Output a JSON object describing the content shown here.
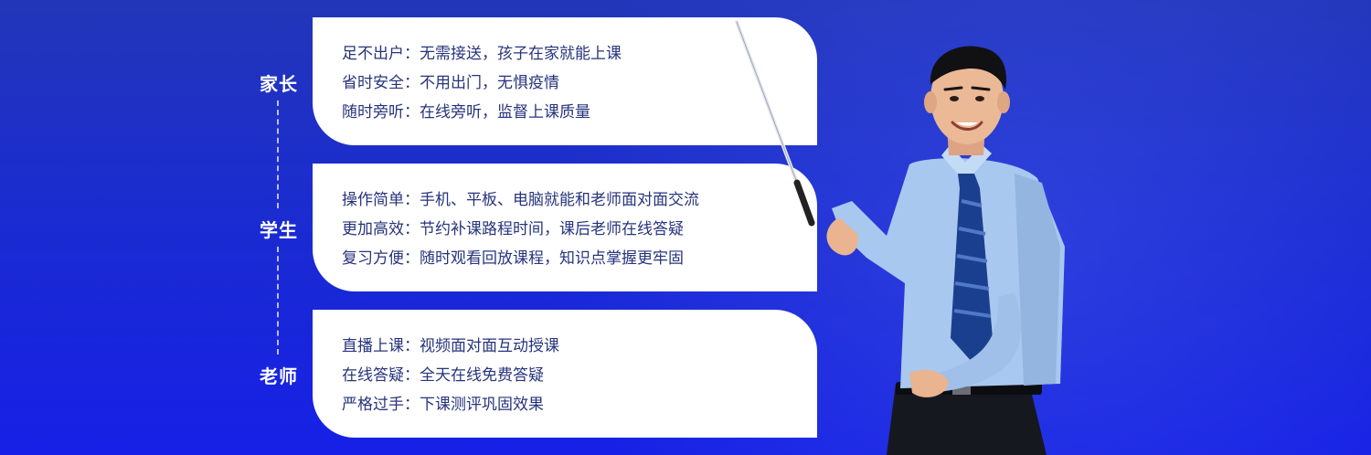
{
  "sections": [
    {
      "label": "家长",
      "lines": [
        "足不出户：无需接送，孩子在家就能上课",
        "省时安全：不用出门，无惧疫情",
        "随时旁听：在线旁听，监督上课质量"
      ]
    },
    {
      "label": "学生",
      "lines": [
        "操作简单：手机、平板、电脑就能和老师面对面交流",
        "更加高效：节约补课路程时间，课后老师在线答疑",
        "复习方便：随时观看回放课程，知识点掌握更牢固"
      ]
    },
    {
      "label": "老师",
      "lines": [
        "直播上课：视频面对面互动授课",
        "在线答疑：全天在线免费答疑",
        "严格过手：下课测评巩固效果"
      ]
    }
  ],
  "colors": {
    "background_top": "#2236b8",
    "background_bottom": "#1620e6",
    "card_text": "#27347c",
    "card_background": "#ffffff",
    "shirt": "#a9c8ef",
    "tie": "#1b3f8f"
  },
  "illustration": {
    "name": "teacher-with-pointer"
  }
}
